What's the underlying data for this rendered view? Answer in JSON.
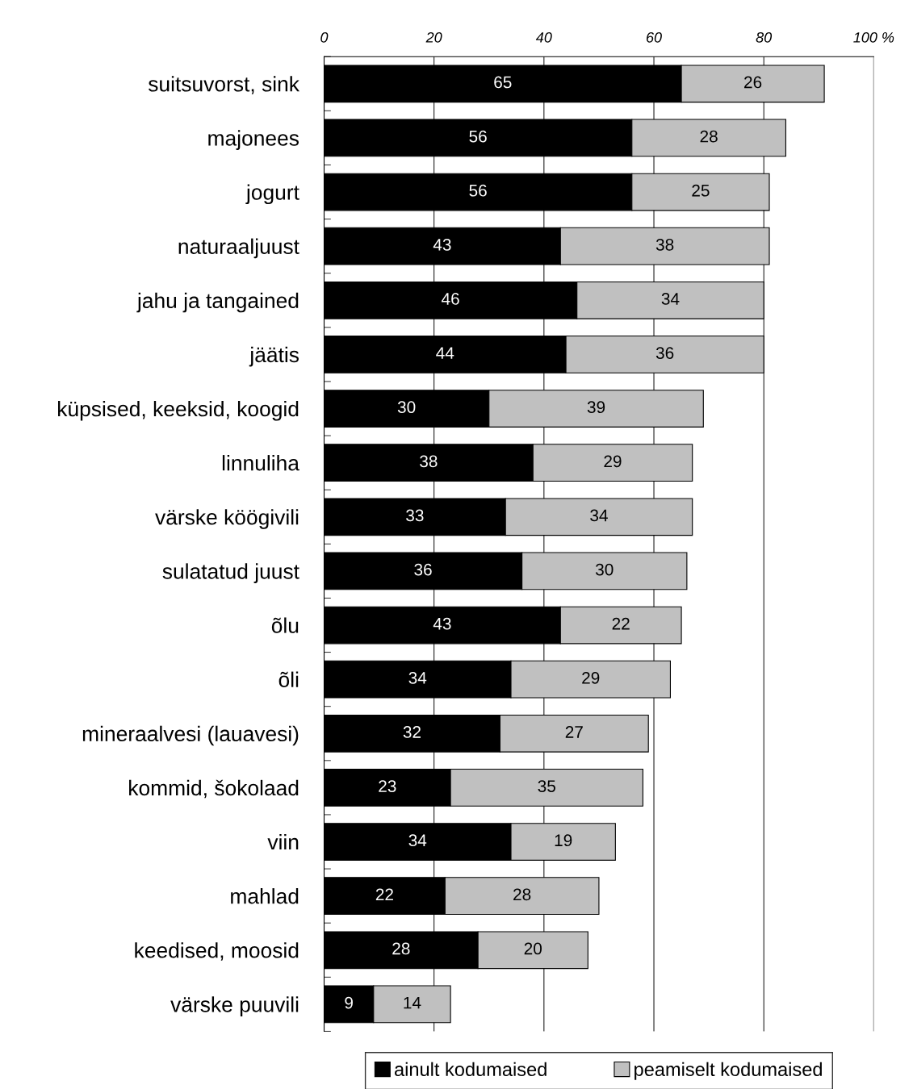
{
  "chart_data": {
    "type": "bar",
    "orientation": "horizontal",
    "stacked": true,
    "categories": [
      "suitsuvorst, sink",
      "majonees",
      "jogurt",
      "naturaaljuust",
      "jahu ja tangained",
      "jäätis",
      "küpsised, keeksid, koogid",
      "linnuliha",
      "värske köögivili",
      "sulatatud juust",
      "õlu",
      "õli",
      "mineraalvesi (lauavesi)",
      "kommid, šokolaad",
      "viin",
      "mahlad",
      "keedised, moosid",
      "värske puuvili"
    ],
    "series": [
      {
        "name": "ainult kodumaised",
        "color": "#000000",
        "values": [
          65,
          56,
          56,
          43,
          46,
          44,
          30,
          38,
          33,
          36,
          43,
          34,
          32,
          23,
          34,
          22,
          28,
          9
        ]
      },
      {
        "name": "peamiselt kodumaised",
        "color": "#c0c0c0",
        "values": [
          26,
          28,
          25,
          38,
          34,
          36,
          39,
          29,
          34,
          30,
          22,
          29,
          27,
          35,
          19,
          28,
          20,
          14
        ]
      }
    ],
    "xlim": [
      0,
      100
    ],
    "xticks": [
      0,
      20,
      40,
      60,
      80,
      {
        "value": 100,
        "label": "100 %"
      }
    ],
    "grid": "x",
    "legend": "bottom",
    "data_labels": true
  }
}
